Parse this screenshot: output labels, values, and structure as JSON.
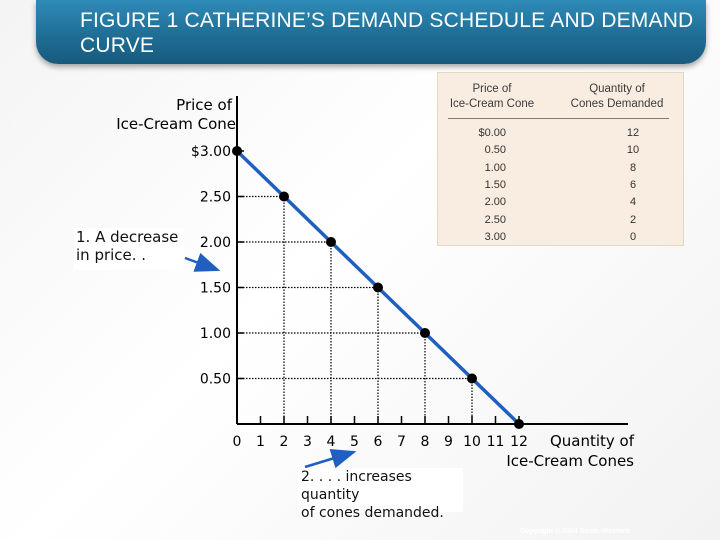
{
  "slide": {
    "title": "FIGURE 1 CATHERINE’S DEMAND SCHEDULE AND DEMAND CURVE",
    "copyright": "Copyright © 2004 South-Western",
    "annotation_price": "1. A decrease\nin price. .",
    "annotation_quantity": "2. . . . increases quantity\nof cones demanded."
  },
  "table": {
    "header_price": "Price of\nIce-Cream Cone",
    "header_quantity": "Quantity of\nCones Demanded",
    "rows": [
      {
        "price": "$0.00",
        "quantity": "12"
      },
      {
        "price": "0.50",
        "quantity": "10"
      },
      {
        "price": "1.00",
        "quantity": "8"
      },
      {
        "price": "1.50",
        "quantity": "6"
      },
      {
        "price": "2.00",
        "quantity": "4"
      },
      {
        "price": "2.50",
        "quantity": "2"
      },
      {
        "price": "3.00",
        "quantity": "0"
      }
    ]
  },
  "chart_data": {
    "type": "line",
    "title": "",
    "xlabel": "Quantity of Ice-Cream Cones",
    "ylabel": "Price of Ice-Cream Cone",
    "xlim": [
      0,
      12
    ],
    "ylim": [
      0,
      3
    ],
    "x_ticks": [
      "0",
      "1",
      "2",
      "3",
      "4",
      "5",
      "6",
      "7",
      "8",
      "9",
      "10",
      "11",
      "12"
    ],
    "y_ticks": [
      "0.50",
      "1.00",
      "1.50",
      "2.00",
      "2.50",
      "$3.00"
    ],
    "y_tick_values": [
      0.5,
      1.0,
      1.5,
      2.0,
      2.5,
      3.0
    ],
    "x": [
      0,
      2,
      4,
      6,
      8,
      10,
      12
    ],
    "y": [
      3.0,
      2.5,
      2.0,
      1.5,
      1.0,
      0.5,
      0.0
    ],
    "grid": "dotted guide lines from each point to the axes",
    "colors": {
      "line": "#1f5fbf",
      "points": "#000000",
      "arrows": "#1f5fbf"
    }
  }
}
